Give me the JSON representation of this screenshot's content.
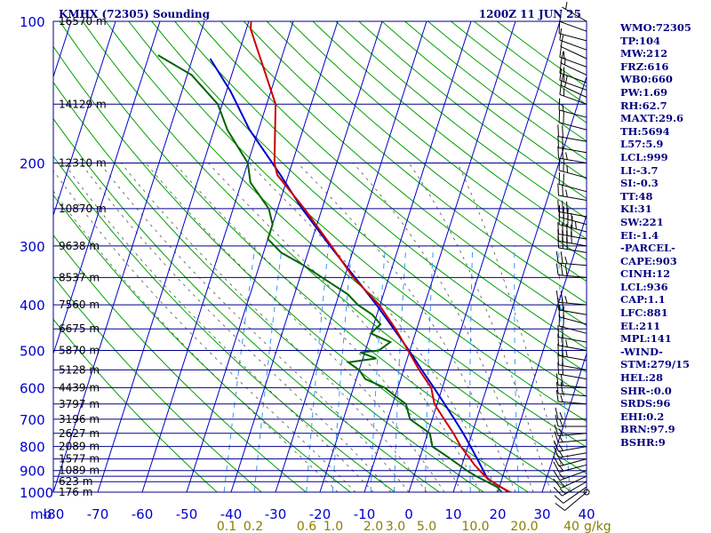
{
  "header": {
    "title": "KMHX (72305) Sounding",
    "valid_time": "1200Z 11 JUN 25"
  },
  "colors": {
    "isobar": "#00008b",
    "isotherm": "#0000cc",
    "dry_adiabat": "#00a000",
    "moist_adiabat": "#555555",
    "mixing_ratio": "#3399ff",
    "temperature": "#cc0000",
    "dewpoint": "#006400",
    "parcel": "#0000cc",
    "index_text": "#000080"
  },
  "indices": [
    "WMO:72305",
    "TP:104",
    "MW:212",
    "FRZ:616",
    "WB0:660",
    "PW:1.69",
    "RH:62.7",
    "MAXT:29.6",
    "TH:5694",
    "L57:5.9",
    "LCL:999",
    "LI:-3.7",
    "SI:-0.3",
    "TT:48",
    "KI:31",
    "SW:221",
    "EI:-1.4",
    "-PARCEL-",
    "CAPE:903",
    "CINH:12",
    "LCL:936",
    "CAP:1.1",
    "LFC:881",
    "EL:211",
    "MPL:141",
    "-WIND-",
    "STM:279/15",
    "HEL:28",
    "SHR-:0.0",
    "SRDS:96",
    "EHI:0.2",
    "BRN:97.9",
    "BSHR:9"
  ],
  "chart_data": {
    "type": "line",
    "title": "KMHX (72305) Sounding",
    "subtitle": "1200Z 11 JUN 25",
    "pressure_axis": {
      "unit": "mb",
      "scale": "log",
      "range": [
        1000,
        100
      ],
      "labeled_ticks": [
        100,
        200,
        300,
        400,
        500,
        600,
        700,
        800,
        900,
        1000
      ],
      "isobars": [
        100,
        150,
        200,
        250,
        300,
        350,
        400,
        450,
        500,
        550,
        600,
        650,
        700,
        750,
        800,
        850,
        900,
        925,
        950,
        1000
      ]
    },
    "temperature_axis": {
      "unit": "C",
      "ticks": [
        -80,
        -70,
        -60,
        -50,
        -40,
        -30,
        -20,
        -10,
        0,
        10,
        20,
        30,
        40
      ],
      "tick_labels": [
        "-80",
        "-70",
        "-60",
        "-50",
        "-40",
        "-30",
        "-20",
        "-10",
        "0",
        "10",
        "20",
        "30",
        "40"
      ],
      "skew_deg_per_decade": 34,
      "range_at_1000mb": [
        -80,
        40
      ]
    },
    "height_labels": [
      {
        "p": 100,
        "label": "16570 m"
      },
      {
        "p": 150,
        "label": "14129 m"
      },
      {
        "p": 200,
        "label": "12310 m"
      },
      {
        "p": 250,
        "label": "10870 m"
      },
      {
        "p": 300,
        "label": "9638 m"
      },
      {
        "p": 350,
        "label": "8537 m"
      },
      {
        "p": 400,
        "label": "7560 m"
      },
      {
        "p": 450,
        "label": "6675 m"
      },
      {
        "p": 500,
        "label": "5870 m"
      },
      {
        "p": 550,
        "label": "5128 m"
      },
      {
        "p": 600,
        "label": "4439 m"
      },
      {
        "p": 650,
        "label": "3797 m"
      },
      {
        "p": 700,
        "label": "3196 m"
      },
      {
        "p": 750,
        "label": "2627 m"
      },
      {
        "p": 800,
        "label": "2089 m"
      },
      {
        "p": 850,
        "label": "1577 m"
      },
      {
        "p": 900,
        "label": "1089 m"
      },
      {
        "p": 950,
        "label": "623 m"
      },
      {
        "p": 1000,
        "label": "176 m"
      }
    ],
    "mixing_ratio_labels": {
      "unit": "g/kg",
      "values": [
        "0.1",
        "0.2",
        "0.6",
        "1.0",
        "2.0",
        "3.0",
        "5.0",
        "10.0",
        "20.0",
        "40"
      ],
      "numeric": [
        0.1,
        0.2,
        0.6,
        1.0,
        2.0,
        3.0,
        5.0,
        10.0,
        20.0,
        40.0
      ]
    },
    "series": [
      {
        "name": "Temperature",
        "points": [
          [
            1007,
            24.5
          ],
          [
            1000,
            22.8
          ],
          [
            975,
            20.3
          ],
          [
            950,
            18.0
          ],
          [
            925,
            16.0
          ],
          [
            900,
            14.4
          ],
          [
            875,
            12.8
          ],
          [
            850,
            11.4
          ],
          [
            800,
            8.4
          ],
          [
            750,
            5.8
          ],
          [
            700,
            2.7
          ],
          [
            650,
            -0.6
          ],
          [
            600,
            -2.5
          ],
          [
            550,
            -6.5
          ],
          [
            500,
            -10.4
          ],
          [
            450,
            -14.8
          ],
          [
            400,
            -20.2
          ],
          [
            350,
            -28.0
          ],
          [
            300,
            -35.2
          ],
          [
            250,
            -44.0
          ],
          [
            212,
            -52.5
          ],
          [
            200,
            -54.0
          ],
          [
            150,
            -58.0
          ],
          [
            104,
            -69.0
          ],
          [
            100,
            -69.5
          ]
        ]
      },
      {
        "name": "Dewpoint",
        "points": [
          [
            1007,
            21.0
          ],
          [
            1000,
            20.9
          ],
          [
            975,
            19.5
          ],
          [
            950,
            16.8
          ],
          [
            925,
            14.0
          ],
          [
            900,
            11.5
          ],
          [
            850,
            7.0
          ],
          [
            800,
            2.0
          ],
          [
            750,
            0.5
          ],
          [
            700,
            -5.0
          ],
          [
            650,
            -7.0
          ],
          [
            625,
            -10.0
          ],
          [
            600,
            -13.0
          ],
          [
            575,
            -18.0
          ],
          [
            550,
            -20.0
          ],
          [
            530,
            -23.0
          ],
          [
            520,
            -17.0
          ],
          [
            505,
            -21.0
          ],
          [
            500,
            -17.0
          ],
          [
            480,
            -15.0
          ],
          [
            460,
            -20.0
          ],
          [
            440,
            -18.5
          ],
          [
            420,
            -21.0
          ],
          [
            400,
            -25.0
          ],
          [
            380,
            -28.0
          ],
          [
            350,
            -35.0
          ],
          [
            330,
            -40.0
          ],
          [
            310,
            -46.0
          ],
          [
            290,
            -50.0
          ],
          [
            270,
            -50.0
          ],
          [
            250,
            -52.0
          ],
          [
            220,
            -58.0
          ],
          [
            200,
            -60.0
          ],
          [
            170,
            -67.0
          ],
          [
            150,
            -71.0
          ],
          [
            130,
            -79.0
          ],
          [
            118,
            -88.0
          ]
        ]
      },
      {
        "name": "Parcel",
        "points": [
          [
            1000,
            22.5
          ],
          [
            975,
            20.3
          ],
          [
            950,
            18.0
          ],
          [
            936,
            16.7
          ],
          [
            900,
            15.2
          ],
          [
            850,
            13.0
          ],
          [
            800,
            10.6
          ],
          [
            750,
            8.0
          ],
          [
            700,
            5.0
          ],
          [
            650,
            1.7
          ],
          [
            600,
            -1.9
          ],
          [
            550,
            -5.9
          ],
          [
            500,
            -10.2
          ],
          [
            450,
            -15.2
          ],
          [
            400,
            -20.8
          ],
          [
            350,
            -27.6
          ],
          [
            300,
            -35.5
          ],
          [
            250,
            -44.5
          ],
          [
            211,
            -52.0
          ],
          [
            170,
            -62.0
          ],
          [
            141,
            -69.0
          ],
          [
            120,
            -76.0
          ]
        ]
      }
    ],
    "wind_barbs": [
      {
        "p": 1000,
        "dir": 230,
        "spd": 10
      },
      {
        "p": 975,
        "dir": 235,
        "spd": 10
      },
      {
        "p": 950,
        "dir": 240,
        "spd": 15
      },
      {
        "p": 925,
        "dir": 245,
        "spd": 15
      },
      {
        "p": 900,
        "dir": 250,
        "spd": 15
      },
      {
        "p": 875,
        "dir": 255,
        "spd": 15
      },
      {
        "p": 850,
        "dir": 255,
        "spd": 15
      },
      {
        "p": 825,
        "dir": 260,
        "spd": 15
      },
      {
        "p": 800,
        "dir": 260,
        "spd": 15
      },
      {
        "p": 775,
        "dir": 265,
        "spd": 15
      },
      {
        "p": 750,
        "dir": 265,
        "spd": 15
      },
      {
        "p": 725,
        "dir": 270,
        "spd": 15
      },
      {
        "p": 700,
        "dir": 270,
        "spd": 15
      },
      {
        "p": 650,
        "dir": 275,
        "spd": 15
      },
      {
        "p": 625,
        "dir": 275,
        "spd": 20
      },
      {
        "p": 600,
        "dir": 275,
        "spd": 20
      },
      {
        "p": 575,
        "dir": 280,
        "spd": 20
      },
      {
        "p": 550,
        "dir": 280,
        "spd": 20
      },
      {
        "p": 525,
        "dir": 280,
        "spd": 25
      },
      {
        "p": 500,
        "dir": 280,
        "spd": 25
      },
      {
        "p": 480,
        "dir": 280,
        "spd": 20
      },
      {
        "p": 460,
        "dir": 285,
        "spd": 20
      },
      {
        "p": 440,
        "dir": 285,
        "spd": 20
      },
      {
        "p": 420,
        "dir": 280,
        "spd": 20
      },
      {
        "p": 400,
        "dir": 275,
        "spd": 25
      },
      {
        "p": 350,
        "dir": 275,
        "spd": 30
      },
      {
        "p": 330,
        "dir": 275,
        "spd": 25
      },
      {
        "p": 310,
        "dir": 280,
        "spd": 30
      },
      {
        "p": 300,
        "dir": 280,
        "spd": 40
      },
      {
        "p": 290,
        "dir": 280,
        "spd": 40
      },
      {
        "p": 280,
        "dir": 285,
        "spd": 45
      },
      {
        "p": 270,
        "dir": 285,
        "spd": 35
      },
      {
        "p": 260,
        "dir": 280,
        "spd": 30
      },
      {
        "p": 240,
        "dir": 280,
        "spd": 25
      },
      {
        "p": 230,
        "dir": 285,
        "spd": 20
      },
      {
        "p": 215,
        "dir": 285,
        "spd": 25
      },
      {
        "p": 200,
        "dir": 280,
        "spd": 25
      },
      {
        "p": 190,
        "dir": 280,
        "spd": 20
      },
      {
        "p": 180,
        "dir": 280,
        "spd": 20
      },
      {
        "p": 170,
        "dir": 285,
        "spd": 20
      },
      {
        "p": 160,
        "dir": 285,
        "spd": 15
      },
      {
        "p": 150,
        "dir": 290,
        "spd": 15
      },
      {
        "p": 145,
        "dir": 295,
        "spd": 20
      },
      {
        "p": 140,
        "dir": 290,
        "spd": 15
      },
      {
        "p": 135,
        "dir": 290,
        "spd": 15
      },
      {
        "p": 130,
        "dir": 295,
        "spd": 15
      },
      {
        "p": 125,
        "dir": 290,
        "spd": 15
      },
      {
        "p": 120,
        "dir": 295,
        "spd": 10
      },
      {
        "p": 115,
        "dir": 290,
        "spd": 10
      },
      {
        "p": 110,
        "dir": 285,
        "spd": 10
      },
      {
        "p": 105,
        "dir": 290,
        "spd": 10
      },
      {
        "p": 100,
        "dir": 300,
        "spd": 5
      }
    ],
    "grid": true,
    "legend": "none"
  }
}
